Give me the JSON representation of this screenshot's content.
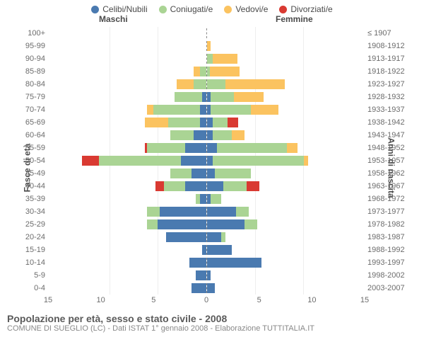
{
  "chart": {
    "type": "population-pyramid",
    "legend": [
      {
        "label": "Celibi/Nubili",
        "color": "#4a7ab0"
      },
      {
        "label": "Coniugati/e",
        "color": "#aad494"
      },
      {
        "label": "Vedovi/e",
        "color": "#fbc360"
      },
      {
        "label": "Divorziati/e",
        "color": "#d93a32"
      }
    ],
    "header": {
      "male": "Maschi",
      "female": "Femmine"
    },
    "y_label_left": "Fasce di età",
    "y_label_right": "Anni di nascita",
    "x_max": 15,
    "x_ticks": [
      15,
      10,
      5,
      0,
      5,
      10,
      15
    ],
    "rows": [
      {
        "age": "100+",
        "birth": "≤ 1907",
        "m": [
          0,
          0,
          0,
          0
        ],
        "f": [
          0,
          0,
          0,
          0
        ]
      },
      {
        "age": "95-99",
        "birth": "1908-1912",
        "m": [
          0,
          0,
          0,
          0
        ],
        "f": [
          0,
          0,
          0.4,
          0
        ]
      },
      {
        "age": "90-94",
        "birth": "1913-1917",
        "m": [
          0,
          0,
          0,
          0
        ],
        "f": [
          0,
          0.6,
          2.3,
          0
        ]
      },
      {
        "age": "85-89",
        "birth": "1918-1922",
        "m": [
          0,
          0.6,
          0.6,
          0
        ],
        "f": [
          0,
          0.3,
          2.8,
          0
        ]
      },
      {
        "age": "80-84",
        "birth": "1923-1927",
        "m": [
          0,
          1.2,
          1.6,
          0
        ],
        "f": [
          0,
          1.8,
          5.6,
          0
        ]
      },
      {
        "age": "75-79",
        "birth": "1928-1932",
        "m": [
          0.4,
          2.6,
          0,
          0
        ],
        "f": [
          0.4,
          2.2,
          2.8,
          0
        ]
      },
      {
        "age": "70-74",
        "birth": "1933-1937",
        "m": [
          0.6,
          4.4,
          0.6,
          0
        ],
        "f": [
          0.4,
          3.8,
          2.6,
          0
        ]
      },
      {
        "age": "65-69",
        "birth": "1938-1942",
        "m": [
          0.6,
          3.0,
          2.2,
          0
        ],
        "f": [
          0.6,
          1.4,
          0,
          1.0
        ]
      },
      {
        "age": "60-64",
        "birth": "1943-1947",
        "m": [
          1.2,
          2.2,
          0,
          0
        ],
        "f": [
          0.6,
          1.8,
          1.2,
          0
        ]
      },
      {
        "age": "55-59",
        "birth": "1948-1952",
        "m": [
          2.0,
          3.6,
          0,
          0.2
        ],
        "f": [
          1.0,
          6.6,
          1.0,
          0
        ]
      },
      {
        "age": "50-54",
        "birth": "1953-1957",
        "m": [
          2.4,
          7.8,
          0,
          1.6
        ],
        "f": [
          0.6,
          8.6,
          0.4,
          0
        ]
      },
      {
        "age": "45-49",
        "birth": "1958-1962",
        "m": [
          1.4,
          2.0,
          0,
          0
        ],
        "f": [
          0.8,
          3.4,
          0,
          0
        ]
      },
      {
        "age": "40-44",
        "birth": "1963-1967",
        "m": [
          2.0,
          2.0,
          0,
          0.8
        ],
        "f": [
          1.6,
          2.2,
          0,
          1.2
        ]
      },
      {
        "age": "35-39",
        "birth": "1968-1972",
        "m": [
          0.6,
          0.4,
          0,
          0
        ],
        "f": [
          0.4,
          1.0,
          0,
          0
        ]
      },
      {
        "age": "30-34",
        "birth": "1973-1977",
        "m": [
          4.4,
          1.2,
          0,
          0
        ],
        "f": [
          2.8,
          1.2,
          0,
          0
        ]
      },
      {
        "age": "25-29",
        "birth": "1978-1982",
        "m": [
          4.6,
          1.0,
          0,
          0
        ],
        "f": [
          3.6,
          1.2,
          0,
          0
        ]
      },
      {
        "age": "20-24",
        "birth": "1983-1987",
        "m": [
          3.8,
          0,
          0,
          0
        ],
        "f": [
          1.4,
          0.4,
          0,
          0
        ]
      },
      {
        "age": "15-19",
        "birth": "1988-1992",
        "m": [
          0.4,
          0,
          0,
          0
        ],
        "f": [
          2.4,
          0,
          0,
          0
        ]
      },
      {
        "age": "10-14",
        "birth": "1993-1997",
        "m": [
          1.6,
          0,
          0,
          0
        ],
        "f": [
          5.2,
          0,
          0,
          0
        ]
      },
      {
        "age": "5-9",
        "birth": "1998-2002",
        "m": [
          1.0,
          0,
          0,
          0
        ],
        "f": [
          0.4,
          0,
          0,
          0
        ]
      },
      {
        "age": "0-4",
        "birth": "2003-2007",
        "m": [
          1.4,
          0,
          0,
          0
        ],
        "f": [
          0.8,
          0,
          0,
          0
        ]
      }
    ],
    "footer_title": "Popolazione per età, sesso e stato civile - 2008",
    "footer_sub": "COMUNE DI SUEGLIO (LC) - Dati ISTAT 1° gennaio 2008 - Elaborazione TUTTITALIA.IT"
  }
}
